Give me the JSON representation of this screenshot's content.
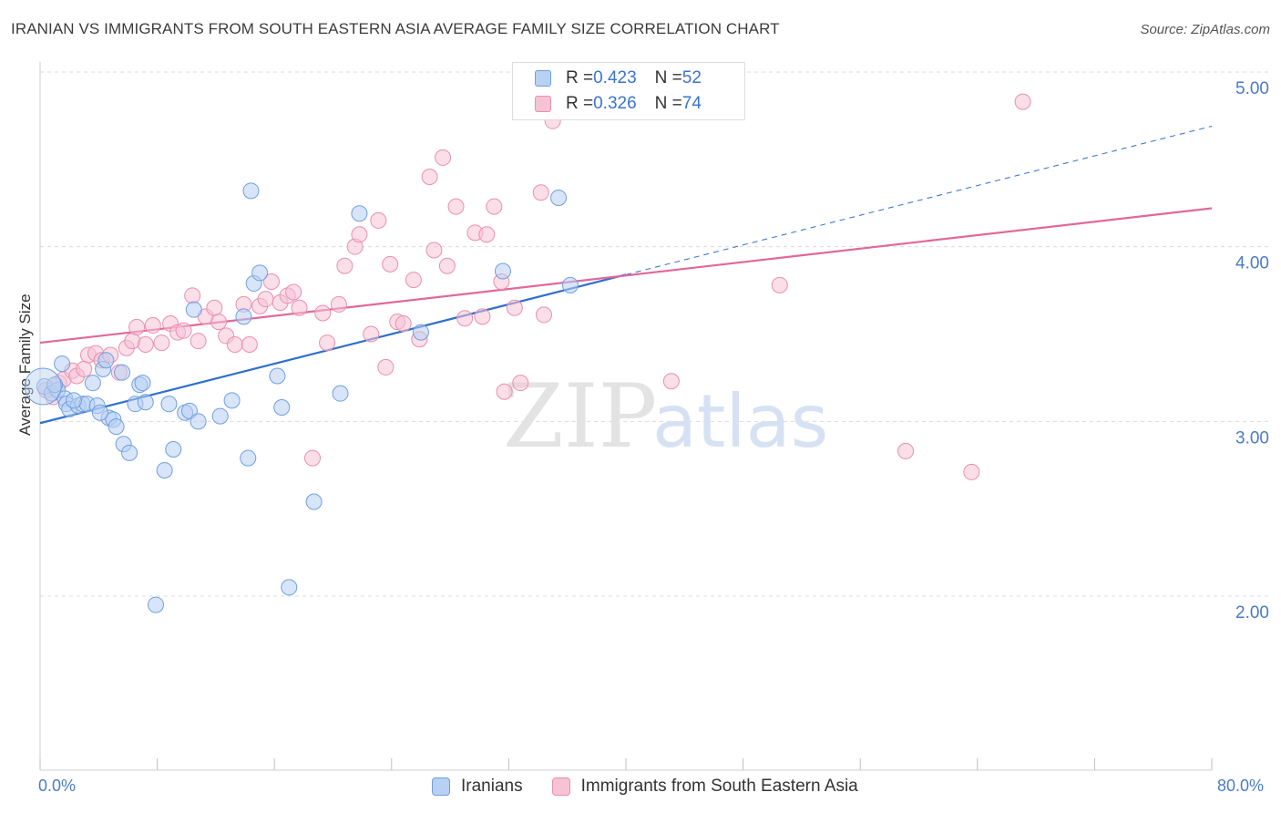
{
  "title": "IRANIAN VS IMMIGRANTS FROM SOUTH EASTERN ASIA AVERAGE FAMILY SIZE CORRELATION CHART",
  "source": "Source: ZipAtlas.com",
  "watermark": {
    "zip": "ZIP",
    "atlas": "atlas"
  },
  "colors": {
    "blue": "#6f9fe0",
    "blue_fill": "#b8d0f2",
    "blue_line": "#2e6fce",
    "pink": "#ea8fb0",
    "pink_fill": "#f6c3d5",
    "pink_line": "#e0689a",
    "tick_text": "#4a7bc8"
  },
  "legend": {
    "rows": [
      {
        "r_label": "R = ",
        "r_value": "0.423",
        "n_label": "N = ",
        "n_value": "52"
      },
      {
        "r_label": "R = ",
        "r_value": "0.326",
        "n_label": "N = ",
        "n_value": "74"
      }
    ]
  },
  "bottom_legend": [
    "Iranians",
    "Immigrants from South Eastern Asia"
  ],
  "chart_data": {
    "type": "scatter",
    "title": "IRANIAN VS IMMIGRANTS FROM SOUTH EASTERN ASIA AVERAGE FAMILY SIZE CORRELATION CHART",
    "xlabel": "",
    "ylabel": "Average Family Size",
    "xlim": [
      0,
      80
    ],
    "ylim": [
      1.0,
      5.2
    ],
    "x_tick_labels": [
      "0.0%",
      "80.0%"
    ],
    "y_ticks": [
      2.0,
      3.0,
      4.0,
      5.0
    ],
    "y_tick_labels": [
      "2.00",
      "3.00",
      "4.00",
      "5.00"
    ],
    "grid": true,
    "legend_placement": "top-center",
    "series": [
      {
        "name": "Iranians",
        "R": 0.423,
        "N": 52,
        "trend": {
          "x0": 0,
          "y0": 2.99,
          "x1": 40,
          "y1": 3.84,
          "dashed_to_x": 80,
          "dashed_to_y": 4.69
        },
        "points": [
          [
            0.3,
            3.2
          ],
          [
            0.8,
            3.16
          ],
          [
            1.2,
            3.18
          ],
          [
            1.5,
            3.33
          ],
          [
            1.7,
            3.13
          ],
          [
            1.8,
            3.1
          ],
          [
            2.0,
            3.07
          ],
          [
            2.6,
            3.09
          ],
          [
            2.9,
            3.1
          ],
          [
            3.2,
            3.1
          ],
          [
            3.6,
            3.22
          ],
          [
            3.9,
            3.09
          ],
          [
            4.3,
            3.3
          ],
          [
            4.5,
            3.35
          ],
          [
            4.7,
            3.02
          ],
          [
            5.0,
            3.01
          ],
          [
            5.2,
            2.97
          ],
          [
            5.6,
            3.28
          ],
          [
            5.7,
            2.87
          ],
          [
            6.1,
            2.82
          ],
          [
            6.5,
            3.1
          ],
          [
            6.8,
            3.21
          ],
          [
            7.0,
            3.22
          ],
          [
            7.2,
            3.11
          ],
          [
            7.9,
            1.95
          ],
          [
            8.5,
            2.72
          ],
          [
            8.8,
            3.1
          ],
          [
            9.1,
            2.84
          ],
          [
            9.9,
            3.05
          ],
          [
            10.2,
            3.06
          ],
          [
            10.5,
            3.64
          ],
          [
            10.8,
            3.0
          ],
          [
            12.3,
            3.03
          ],
          [
            13.1,
            3.12
          ],
          [
            13.9,
            3.6
          ],
          [
            14.2,
            2.79
          ],
          [
            14.4,
            4.32
          ],
          [
            14.6,
            3.79
          ],
          [
            15.0,
            3.85
          ],
          [
            16.2,
            3.26
          ],
          [
            16.5,
            3.08
          ],
          [
            17.0,
            2.05
          ],
          [
            18.7,
            2.54
          ],
          [
            20.5,
            3.16
          ],
          [
            21.8,
            4.19
          ],
          [
            31.6,
            3.86
          ],
          [
            26.0,
            3.51
          ],
          [
            35.4,
            4.28
          ],
          [
            36.2,
            3.78
          ],
          [
            1.0,
            3.21
          ],
          [
            2.3,
            3.12
          ],
          [
            4.1,
            3.05
          ]
        ]
      },
      {
        "name": "Immigrants from South Eastern Asia",
        "R": 0.326,
        "N": 74,
        "trend": {
          "x0": 0,
          "y0": 3.45,
          "x1": 80,
          "y1": 4.22
        },
        "points": [
          [
            0.4,
            3.18
          ],
          [
            0.9,
            3.14
          ],
          [
            1.3,
            3.22
          ],
          [
            1.6,
            3.24
          ],
          [
            2.2,
            3.29
          ],
          [
            2.5,
            3.26
          ],
          [
            3.0,
            3.3
          ],
          [
            3.3,
            3.38
          ],
          [
            3.8,
            3.39
          ],
          [
            4.2,
            3.35
          ],
          [
            4.8,
            3.38
          ],
          [
            5.4,
            3.28
          ],
          [
            5.9,
            3.42
          ],
          [
            6.3,
            3.46
          ],
          [
            6.6,
            3.54
          ],
          [
            7.2,
            3.44
          ],
          [
            7.7,
            3.55
          ],
          [
            8.3,
            3.45
          ],
          [
            8.9,
            3.56
          ],
          [
            9.4,
            3.51
          ],
          [
            9.8,
            3.52
          ],
          [
            10.4,
            3.72
          ],
          [
            10.8,
            3.46
          ],
          [
            11.3,
            3.6
          ],
          [
            11.9,
            3.65
          ],
          [
            12.2,
            3.57
          ],
          [
            12.7,
            3.49
          ],
          [
            13.3,
            3.44
          ],
          [
            13.9,
            3.67
          ],
          [
            14.3,
            3.44
          ],
          [
            15.0,
            3.66
          ],
          [
            15.4,
            3.7
          ],
          [
            15.8,
            3.8
          ],
          [
            16.4,
            3.68
          ],
          [
            16.9,
            3.72
          ],
          [
            17.3,
            3.74
          ],
          [
            17.7,
            3.65
          ],
          [
            18.6,
            2.79
          ],
          [
            19.3,
            3.62
          ],
          [
            19.6,
            3.45
          ],
          [
            20.4,
            3.67
          ],
          [
            20.8,
            3.89
          ],
          [
            21.5,
            4.0
          ],
          [
            21.8,
            4.07
          ],
          [
            22.6,
            3.5
          ],
          [
            23.1,
            4.15
          ],
          [
            23.6,
            3.31
          ],
          [
            23.9,
            3.9
          ],
          [
            24.4,
            3.57
          ],
          [
            24.8,
            3.56
          ],
          [
            25.5,
            3.81
          ],
          [
            25.9,
            3.47
          ],
          [
            26.6,
            4.4
          ],
          [
            26.9,
            3.98
          ],
          [
            27.5,
            4.51
          ],
          [
            27.8,
            3.89
          ],
          [
            28.4,
            4.23
          ],
          [
            29.0,
            3.59
          ],
          [
            29.7,
            4.08
          ],
          [
            30.2,
            3.6
          ],
          [
            30.5,
            4.07
          ],
          [
            31.0,
            4.23
          ],
          [
            31.5,
            3.8
          ],
          [
            31.7,
            3.17
          ],
          [
            32.4,
            3.65
          ],
          [
            32.8,
            3.22
          ],
          [
            34.2,
            4.31
          ],
          [
            34.4,
            3.61
          ],
          [
            35.0,
            4.72
          ],
          [
            43.1,
            3.23
          ],
          [
            50.5,
            3.78
          ],
          [
            59.1,
            2.83
          ],
          [
            63.6,
            2.71
          ],
          [
            67.1,
            4.83
          ]
        ]
      }
    ]
  }
}
